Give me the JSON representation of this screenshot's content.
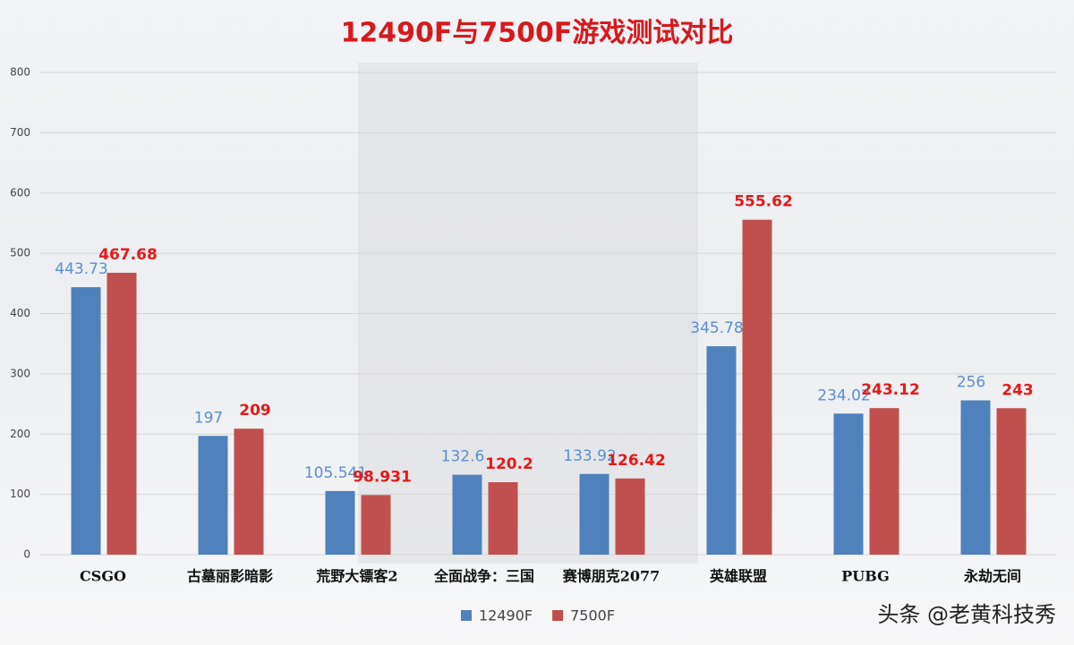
{
  "chart_data": {
    "type": "bar",
    "title": "12490F与7500F游戏测试对比",
    "categories": [
      "CSGO",
      "古墓丽影暗影",
      "荒野大镖客2",
      "全面战争：三国",
      "赛博朋克2077",
      "英雄联盟",
      "PUBG",
      "永劫无间"
    ],
    "series": [
      {
        "name": "12490F",
        "color": "#4f81bd",
        "values": [
          443.73,
          197,
          105.541,
          132.6,
          133.92,
          345.78,
          234.02,
          256
        ]
      },
      {
        "name": "7500F",
        "color": "#c0504d",
        "values": [
          467.68,
          209,
          98.931,
          120.2,
          126.42,
          555.62,
          243.12,
          243
        ]
      }
    ],
    "ylim": [
      0,
      800
    ],
    "yticks": [
      0,
      100,
      200,
      300,
      400,
      500,
      600,
      700,
      800
    ],
    "grid": true,
    "legend": "bottom",
    "watermark": "头条 @老黄科技秀"
  }
}
